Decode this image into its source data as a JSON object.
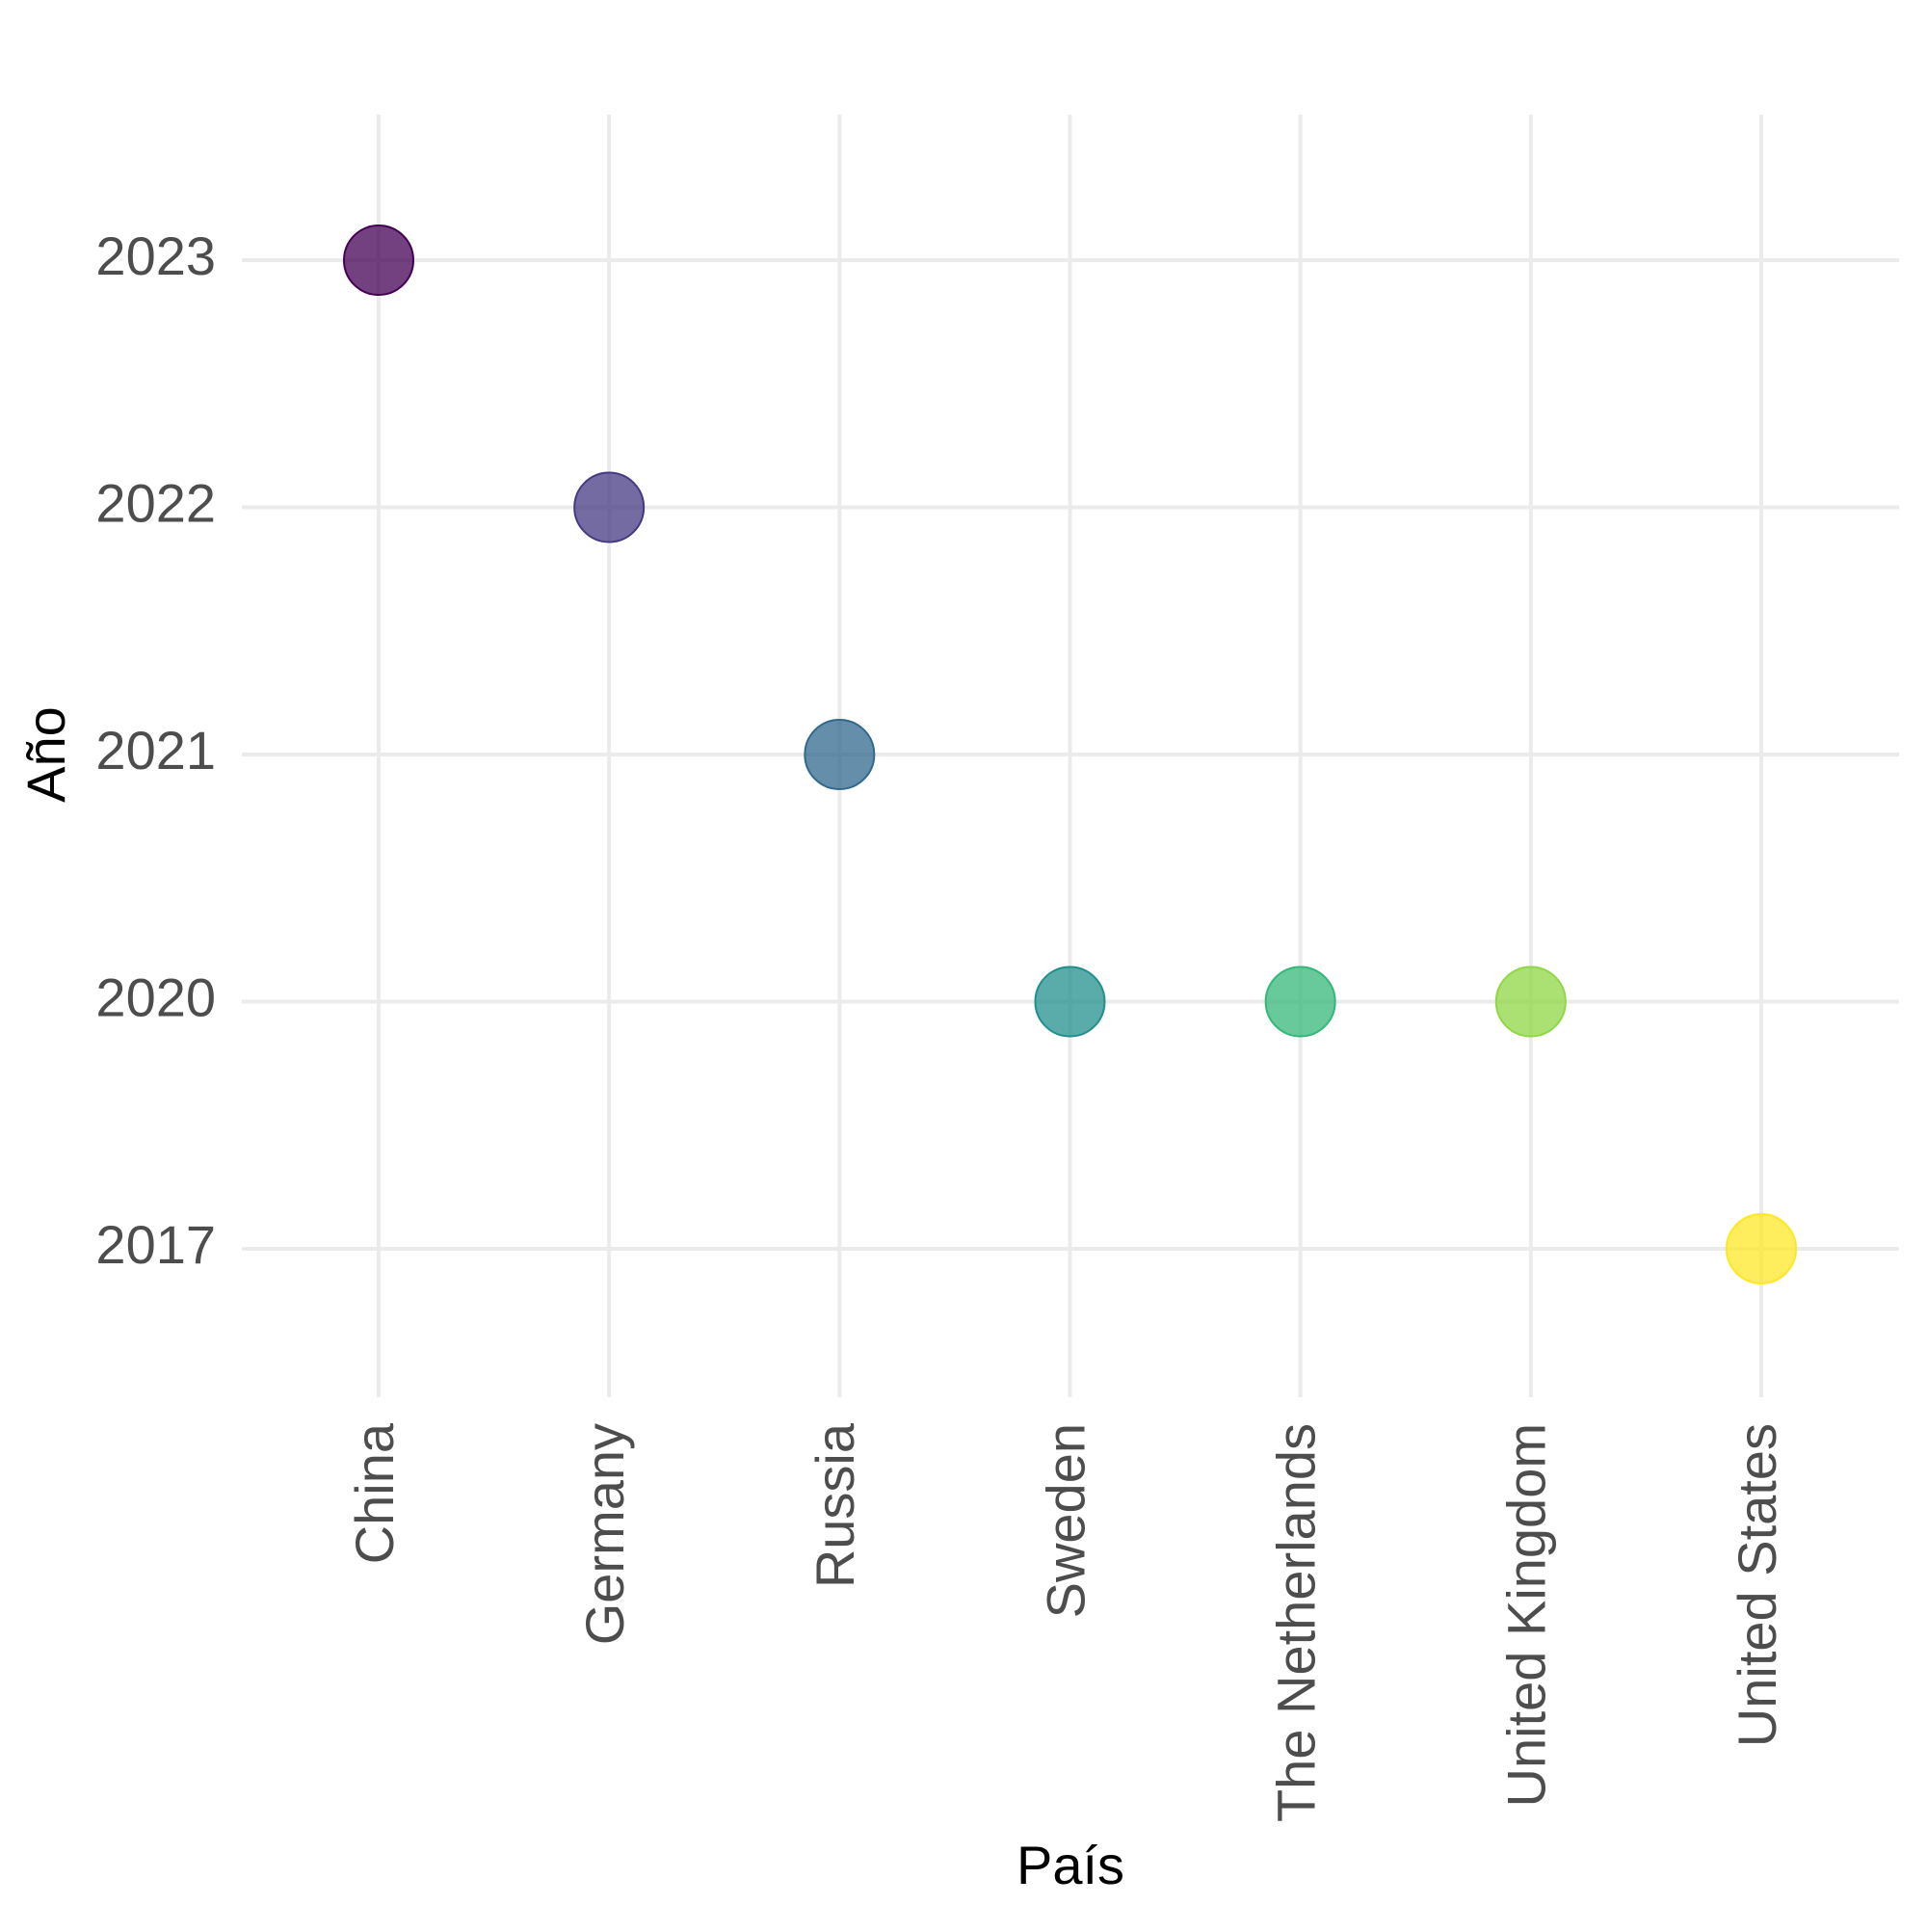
{
  "chart_data": {
    "type": "scatter",
    "x_label": "País",
    "y_label": "Año",
    "categories": [
      "China",
      "Germany",
      "Russia",
      "Sweden",
      "The Netherlands",
      "United Kingdom",
      "United States"
    ],
    "values": [
      2023,
      2022,
      2021,
      2020,
      2020,
      2020,
      2017
    ],
    "colors": [
      "#440154",
      "#443a83",
      "#31688e",
      "#21908c",
      "#35b779",
      "#8fd744",
      "#fde725"
    ],
    "y_scale": "discrete",
    "yticks": [
      2017,
      2020,
      2021,
      2022,
      2023
    ],
    "grid": true
  }
}
